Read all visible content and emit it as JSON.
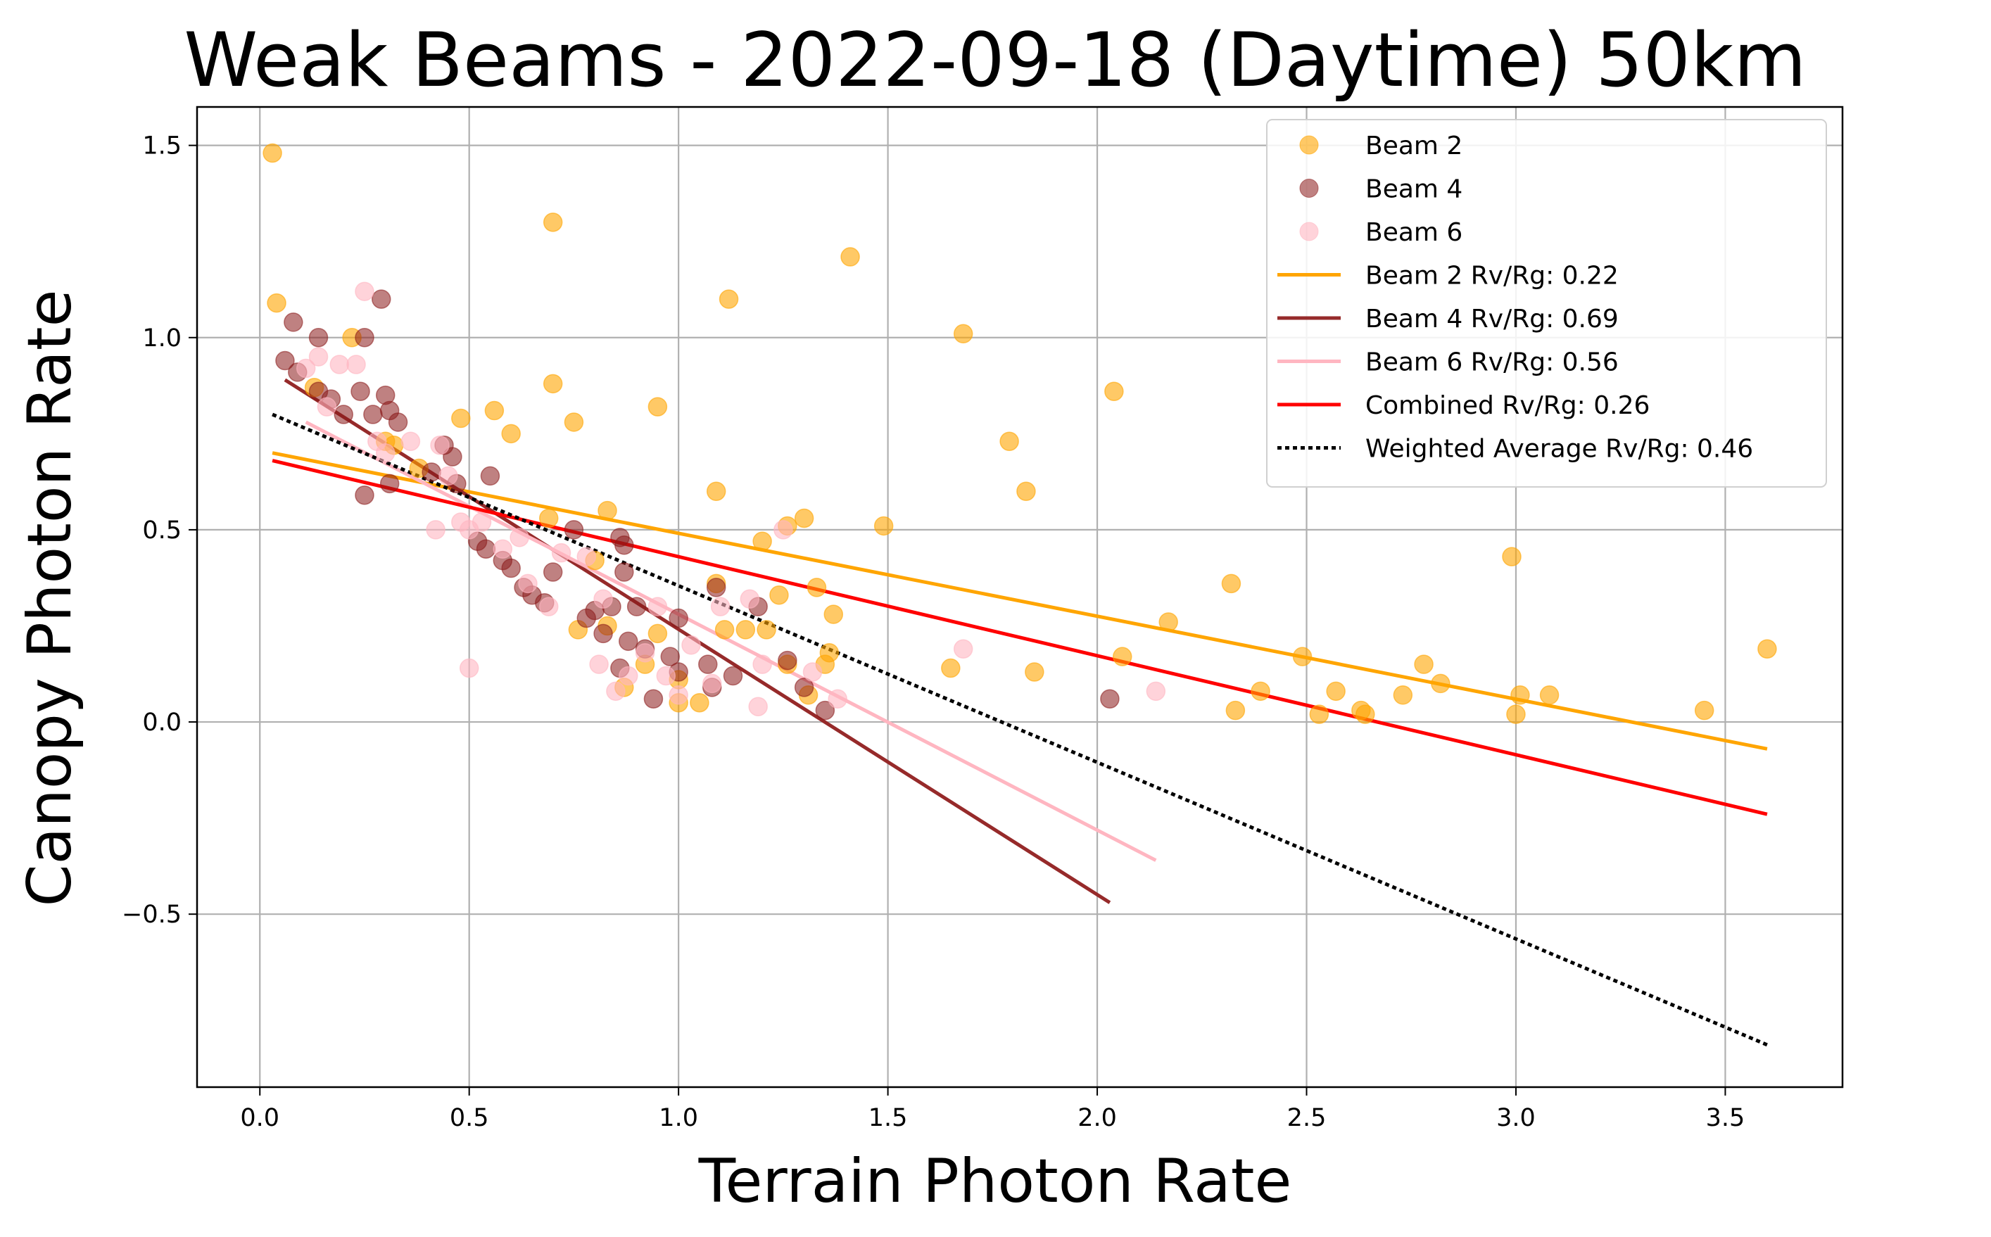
{
  "chart_data": {
    "type": "scatter",
    "title": "Weak Beams - 2022-09-18 (Daytime) 50km",
    "xlabel": "Terrain Photon Rate",
    "ylabel": "Canopy Photon Rate",
    "xlim": [
      -0.15,
      3.78
    ],
    "ylim": [
      -0.95,
      1.6
    ],
    "xticks": [
      0.0,
      0.5,
      1.0,
      1.5,
      2.0,
      2.5,
      3.0,
      3.5
    ],
    "xtick_labels": [
      "0.0",
      "0.5",
      "1.0",
      "1.5",
      "2.0",
      "2.5",
      "3.0",
      "3.5"
    ],
    "yticks": [
      -0.5,
      0.0,
      0.5,
      1.0,
      1.5
    ],
    "ytick_labels": [
      "−0.5",
      "0.0",
      "0.5",
      "1.0",
      "1.5"
    ],
    "grid": true,
    "legend_position": "top-right",
    "series": [
      {
        "name": "Beam 2",
        "kind": "scatter",
        "color": "#FFA500",
        "opacity": 0.6,
        "x": [
          0.03,
          0.04,
          0.13,
          0.22,
          0.3,
          0.32,
          0.38,
          0.48,
          0.56,
          0.6,
          0.69,
          0.7,
          0.7,
          0.75,
          0.76,
          0.8,
          0.83,
          0.83,
          0.87,
          0.92,
          0.95,
          0.95,
          1.0,
          1.0,
          1.05,
          1.09,
          1.09,
          1.11,
          1.12,
          1.16,
          1.2,
          1.21,
          1.24,
          1.26,
          1.26,
          1.3,
          1.31,
          1.33,
          1.35,
          1.36,
          1.37,
          1.41,
          1.49,
          1.65,
          1.68,
          1.79,
          1.83,
          1.85,
          2.04,
          2.06,
          2.17,
          2.32,
          2.33,
          2.39,
          2.49,
          2.53,
          2.57,
          2.63,
          2.64,
          2.73,
          2.78,
          2.82,
          2.99,
          3.0,
          3.01,
          3.08,
          3.45,
          3.6
        ],
        "y": [
          1.48,
          1.09,
          0.87,
          1.0,
          0.73,
          0.72,
          0.66,
          0.79,
          0.81,
          0.75,
          0.53,
          1.3,
          0.88,
          0.78,
          0.24,
          0.42,
          0.55,
          0.25,
          0.09,
          0.15,
          0.23,
          0.82,
          0.05,
          0.11,
          0.05,
          0.6,
          0.36,
          0.24,
          1.1,
          0.24,
          0.47,
          0.24,
          0.33,
          0.51,
          0.15,
          0.53,
          0.07,
          0.35,
          0.15,
          0.18,
          0.28,
          1.21,
          0.51,
          0.14,
          1.01,
          0.73,
          0.6,
          0.13,
          0.86,
          0.17,
          0.26,
          0.36,
          0.03,
          0.08,
          0.17,
          0.02,
          0.08,
          0.03,
          0.02,
          0.07,
          0.15,
          0.1,
          0.43,
          0.02,
          0.07,
          0.07,
          0.03,
          0.19
        ]
      },
      {
        "name": "Beam 4",
        "kind": "scatter",
        "color": "#8B1A1A",
        "opacity": 0.55,
        "x": [
          0.06,
          0.08,
          0.09,
          0.14,
          0.14,
          0.17,
          0.2,
          0.24,
          0.25,
          0.25,
          0.27,
          0.29,
          0.3,
          0.31,
          0.31,
          0.33,
          0.41,
          0.44,
          0.46,
          0.47,
          0.52,
          0.54,
          0.55,
          0.58,
          0.6,
          0.63,
          0.65,
          0.68,
          0.7,
          0.75,
          0.78,
          0.8,
          0.82,
          0.84,
          0.86,
          0.86,
          0.87,
          0.87,
          0.88,
          0.9,
          0.92,
          0.94,
          0.98,
          1.0,
          1.0,
          1.07,
          1.08,
          1.09,
          1.13,
          1.19,
          1.26,
          1.3,
          1.35,
          2.03
        ],
        "y": [
          0.94,
          1.04,
          0.91,
          1.0,
          0.86,
          0.84,
          0.8,
          0.86,
          1.0,
          0.59,
          0.8,
          1.1,
          0.85,
          0.62,
          0.81,
          0.78,
          0.65,
          0.72,
          0.69,
          0.62,
          0.47,
          0.45,
          0.64,
          0.42,
          0.4,
          0.35,
          0.33,
          0.31,
          0.39,
          0.5,
          0.27,
          0.29,
          0.23,
          0.3,
          0.14,
          0.48,
          0.46,
          0.39,
          0.21,
          0.3,
          0.19,
          0.06,
          0.17,
          0.27,
          0.13,
          0.15,
          0.09,
          0.35,
          0.12,
          0.3,
          0.16,
          0.09,
          0.03,
          0.06
        ]
      },
      {
        "name": "Beam 6",
        "kind": "scatter",
        "color": "#FFB6C1",
        "opacity": 0.6,
        "x": [
          0.11,
          0.14,
          0.16,
          0.19,
          0.23,
          0.25,
          0.28,
          0.3,
          0.36,
          0.42,
          0.43,
          0.45,
          0.48,
          0.5,
          0.5,
          0.53,
          0.58,
          0.62,
          0.64,
          0.69,
          0.72,
          0.78,
          0.81,
          0.82,
          0.85,
          0.88,
          0.92,
          0.95,
          0.97,
          1.0,
          1.03,
          1.08,
          1.1,
          1.17,
          1.19,
          1.2,
          1.25,
          1.32,
          1.38,
          1.68,
          2.14
        ],
        "y": [
          0.92,
          0.95,
          0.82,
          0.93,
          0.93,
          1.12,
          0.73,
          0.7,
          0.73,
          0.5,
          0.72,
          0.64,
          0.52,
          0.14,
          0.5,
          0.52,
          0.45,
          0.48,
          0.36,
          0.3,
          0.44,
          0.43,
          0.15,
          0.32,
          0.08,
          0.12,
          0.18,
          0.3,
          0.12,
          0.07,
          0.2,
          0.1,
          0.3,
          0.32,
          0.04,
          0.15,
          0.5,
          0.13,
          0.06,
          0.19,
          0.08
        ]
      }
    ],
    "fit_lines": [
      {
        "name": "Beam 2 Rv/Rg: 0.22",
        "color": "#FFA500",
        "dash": "solid",
        "x": [
          0.03,
          3.6
        ],
        "y": [
          0.7,
          -0.07
        ]
      },
      {
        "name": "Beam 4 Rv/Rg: 0.69",
        "color": "#962A2A",
        "dash": "solid",
        "x": [
          0.06,
          2.03
        ],
        "y": [
          0.89,
          -0.47
        ]
      },
      {
        "name": "Beam 6 Rv/Rg: 0.56",
        "color": "#FFB6C1",
        "dash": "solid",
        "x": [
          0.11,
          2.14
        ],
        "y": [
          0.78,
          -0.36
        ]
      },
      {
        "name": "Combined Rv/Rg: 0.26",
        "color": "#FF0000",
        "dash": "solid",
        "x": [
          0.03,
          3.6
        ],
        "y": [
          0.68,
          -0.24
        ]
      },
      {
        "name": "Weighted Average Rv/Rg: 0.46",
        "color": "#000000",
        "dash": "dotted",
        "x": [
          0.03,
          3.6
        ],
        "y": [
          0.8,
          -0.84
        ]
      }
    ]
  }
}
